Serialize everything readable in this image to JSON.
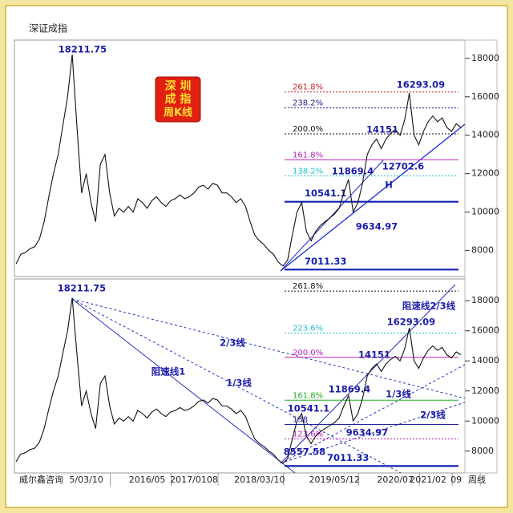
{
  "chart_data": [
    {
      "type": "line",
      "title": "深证成指",
      "badge": [
        "深 圳",
        "成 指",
        "周K线"
      ],
      "color": "#111111",
      "values": [
        7300,
        7800,
        7900,
        8100,
        8200,
        8600,
        9500,
        10800,
        12000,
        13000,
        14500,
        16000,
        18200,
        14500,
        11000,
        12000,
        10500,
        9500,
        12500,
        13000,
        11000,
        9800,
        10200,
        10000,
        10300,
        10000,
        10700,
        10500,
        10200,
        10600,
        10800,
        10500,
        10300,
        10600,
        10700,
        10900,
        10700,
        10800,
        11000,
        11300,
        11400,
        11200,
        11500,
        11400,
        11000,
        11000,
        10800,
        10500,
        10700,
        10300,
        9500,
        8800,
        8500,
        8300,
        8000,
        7800,
        7400,
        7200,
        7500,
        8800,
        10000,
        10500,
        9000,
        8500,
        9000,
        9300,
        9500,
        9700,
        9900,
        10200,
        11000,
        11700,
        10000,
        10500,
        11500,
        13000,
        13500,
        13800,
        13300,
        13800,
        14100,
        14300,
        14000,
        14800,
        16200,
        14000,
        13500,
        14200,
        14700,
        15000,
        14700,
        14900,
        14400,
        14200,
        14600,
        14400
      ],
      "ylim": [
        6650,
        18950
      ],
      "yticks": [
        8000,
        10000,
        12000,
        14000,
        16000,
        18000
      ],
      "levels": [
        {
          "label": "261.8%",
          "value": 16252,
          "color": "#d02020",
          "style": "dotted"
        },
        {
          "label": "238.2%",
          "value": 15419,
          "color": "#20208a",
          "style": "dotted"
        },
        {
          "label": "200.0%",
          "value": 14070,
          "color": "#111111",
          "style": "dotted"
        },
        {
          "label": "161.8%",
          "value": 12722,
          "color": "#c020c0",
          "style": "solid"
        },
        {
          "label": "138.2%",
          "value": 11889,
          "color": "#20c0d0",
          "style": "dotted"
        },
        {
          "label": "10541.1",
          "value": 10541.1,
          "color": "#1020b0",
          "style": "thick"
        },
        {
          "label": "7011.33",
          "value": 7011.33,
          "color": "#1020b0",
          "style": "thick"
        }
      ],
      "annotations": [
        "18211.75",
        "16293.09",
        "14151",
        "11869.4",
        "12702.6",
        "H",
        "9634.97"
      ]
    },
    {
      "type": "line",
      "color": "#111111",
      "values": [
        7300,
        7800,
        7900,
        8100,
        8200,
        8600,
        9500,
        10800,
        12000,
        13000,
        14500,
        16000,
        18200,
        14500,
        11000,
        12000,
        10500,
        9500,
        12500,
        13000,
        11000,
        9800,
        10200,
        10000,
        10300,
        10000,
        10700,
        10500,
        10200,
        10600,
        10800,
        10500,
        10300,
        10600,
        10700,
        10900,
        10700,
        10800,
        11000,
        11300,
        11400,
        11200,
        11500,
        11400,
        11000,
        11000,
        10800,
        10500,
        10700,
        10300,
        9500,
        8800,
        8500,
        8300,
        8000,
        7800,
        7400,
        7200,
        7500,
        8800,
        10000,
        10500,
        9000,
        8500,
        9000,
        9300,
        9500,
        9700,
        9900,
        10200,
        11000,
        11700,
        10000,
        10500,
        11500,
        13000,
        13500,
        13800,
        13300,
        13800,
        14100,
        14300,
        14000,
        14800,
        16200,
        14000,
        13500,
        14200,
        14700,
        15000,
        14700,
        14900,
        14400,
        14200,
        14600,
        14400
      ],
      "categories": [
        null,
        null,
        null,
        null,
        null,
        null,
        null,
        null,
        null,
        null,
        null,
        null,
        null,
        null,
        null,
        "5/03/10",
        null,
        null,
        null,
        null,
        null,
        null,
        null,
        null,
        null,
        null,
        null,
        null,
        "2016/05",
        null,
        null,
        null,
        null,
        null,
        null,
        null,
        null,
        null,
        "2017/0108",
        null,
        null,
        null,
        null,
        null,
        null,
        null,
        null,
        null,
        null,
        null,
        null,
        null,
        "2018/03/10",
        null,
        null,
        null,
        null,
        null,
        null,
        null,
        null,
        null,
        null,
        null,
        null,
        null,
        null,
        null,
        "2019/05/12",
        null,
        null,
        null,
        null,
        null,
        null,
        null,
        null,
        null,
        null,
        null,
        null,
        "2020/07",
        null,
        null,
        null,
        null,
        null,
        null,
        "2021/02",
        null,
        null,
        null,
        null,
        null,
        "09",
        null
      ],
      "ylim": [
        6550,
        19450
      ],
      "yticks": [
        8000,
        10000,
        12000,
        14000,
        16000,
        18000
      ],
      "levels": [
        {
          "label": "261.8%",
          "value": 18645,
          "color": "#111111",
          "style": "dotted"
        },
        {
          "label": "223.6%",
          "value": 15850,
          "color": "#20c0d0",
          "style": "dotted"
        },
        {
          "label": "200.0%",
          "value": 14237,
          "color": "#c020c0",
          "style": "solid"
        },
        {
          "label": "161.8%",
          "value": 11387,
          "color": "#20b020",
          "style": "solid"
        },
        {
          "label": "138",
          "value": 9774,
          "color": "#2020a0",
          "style": "solid"
        },
        {
          "label": "123.6%",
          "value": 8806,
          "color": "#c020c0",
          "style": "dotted"
        },
        {
          "label": "7011.33",
          "value": 7011.33,
          "color": "#1020b0",
          "style": "thick"
        }
      ],
      "annotations": [
        "18211.75",
        "阻速线1",
        "2/3线",
        "1/3线",
        "10541.1",
        "11869.4",
        "14151",
        "16293.09",
        "阻速线2/3线",
        "1/3线",
        "2/3线",
        "9634.97",
        "8557.58"
      ],
      "source": "威尔鑫咨询",
      "period": "周线"
    }
  ]
}
